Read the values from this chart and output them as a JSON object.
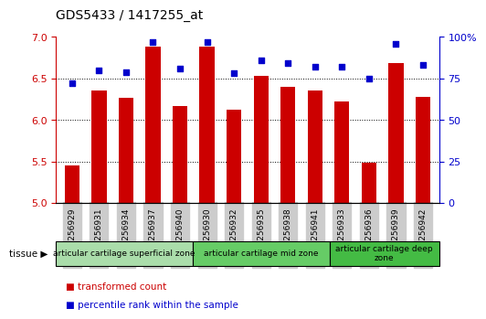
{
  "title": "GDS5433 / 1417255_at",
  "samples": [
    "GSM1256929",
    "GSM1256931",
    "GSM1256934",
    "GSM1256937",
    "GSM1256940",
    "GSM1256930",
    "GSM1256932",
    "GSM1256935",
    "GSM1256938",
    "GSM1256941",
    "GSM1256933",
    "GSM1256936",
    "GSM1256939",
    "GSM1256942"
  ],
  "transformed_count": [
    5.45,
    6.35,
    6.27,
    6.88,
    6.17,
    6.88,
    6.12,
    6.53,
    6.4,
    6.35,
    6.22,
    5.48,
    6.68,
    6.28
  ],
  "percentile_rank": [
    72,
    80,
    79,
    97,
    81,
    97,
    78,
    86,
    84,
    82,
    82,
    75,
    96,
    83
  ],
  "ylim_left": [
    5.0,
    7.0
  ],
  "ylim_right": [
    0,
    100
  ],
  "yticks_left": [
    5.0,
    5.5,
    6.0,
    6.5,
    7.0
  ],
  "yticks_right": [
    0,
    25,
    50,
    75,
    100
  ],
  "ytick_labels_right": [
    "0",
    "25",
    "50",
    "75",
    "100%"
  ],
  "bar_color": "#cc0000",
  "dot_color": "#0000cc",
  "tissue_zones": [
    {
      "label": "articular cartilage superficial zone",
      "start": 0,
      "end": 5,
      "color": "#aaddaa"
    },
    {
      "label": "articular cartilage mid zone",
      "start": 5,
      "end": 10,
      "color": "#66cc66"
    },
    {
      "label": "articular cartilage deep\nzone",
      "start": 10,
      "end": 14,
      "color": "#44bb44"
    }
  ],
  "tick_bg_color": "#cccccc",
  "legend_items": [
    {
      "color": "#cc0000",
      "label": "transformed count"
    },
    {
      "color": "#0000cc",
      "label": "percentile rank within the sample"
    }
  ]
}
